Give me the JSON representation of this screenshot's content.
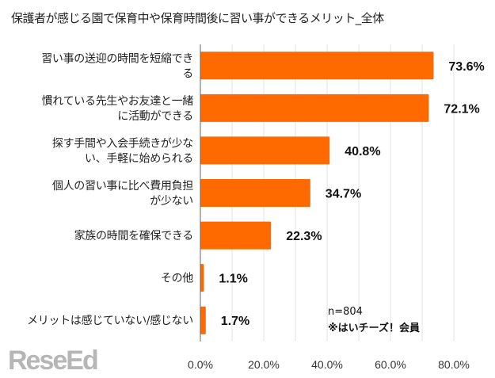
{
  "chart_data": {
    "type": "bar",
    "orientation": "horizontal",
    "title": "保護者が感じる園で保育中や保育時間後に習い事ができるメリット_全体",
    "categories": [
      [
        "習い事の送迎の時間を短縮でき",
        "る"
      ],
      [
        "慣れている先生やお友達と一緒",
        "に活動ができる"
      ],
      [
        "探す手間や入会手続きが少な",
        "い、手軽に始められる"
      ],
      [
        "個人の習い事に比べ費用負担",
        "が少ない"
      ],
      [
        "家族の時間を確保できる"
      ],
      [
        "その他"
      ],
      [
        "メリットは感じていない/感じない"
      ]
    ],
    "values": [
      73.6,
      72.1,
      40.8,
      34.7,
      22.3,
      1.1,
      1.7
    ],
    "data_labels": [
      "73.6%",
      "72.1%",
      "40.8%",
      "34.7%",
      "22.3%",
      "1.1%",
      "1.7%"
    ],
    "xlim": [
      0,
      80
    ],
    "xticks": [
      0,
      20,
      40,
      60,
      80
    ],
    "xtick_labels": [
      "0.0%",
      "20.0%",
      "40.0%",
      "60.0%",
      "80.0%"
    ],
    "grid": true,
    "bar_color": "#ff6a00",
    "grid_color": "#e3e3e3"
  },
  "notes": [
    "n=804",
    "※はいチーズ！会員"
  ],
  "logo": "ReseEd"
}
